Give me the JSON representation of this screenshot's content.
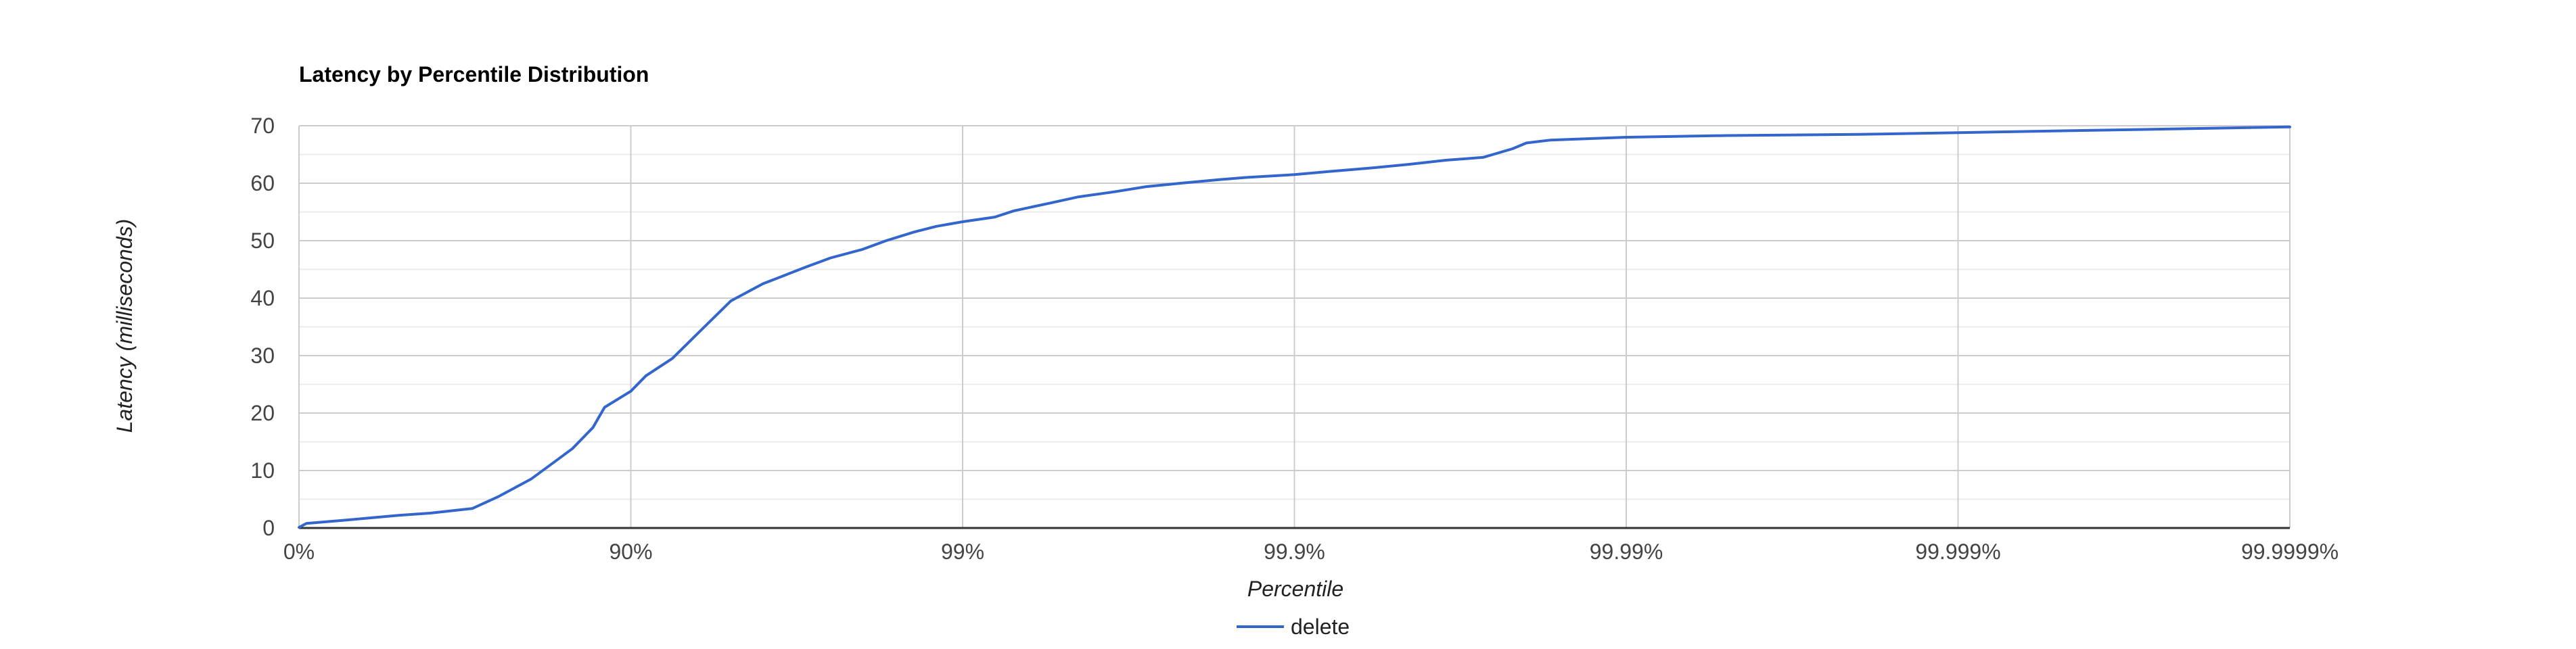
{
  "chart_data": {
    "type": "line",
    "title": "Latency by Percentile Distribution",
    "xlabel": "Percentile",
    "ylabel": "Latency (milliseconds)",
    "x_scale": "percentile-log (log10 of 1/(1 - percentile))",
    "x_tick_labels": [
      "0%",
      "90%",
      "99%",
      "99.9%",
      "99.99%",
      "99.999%",
      "99.9999%"
    ],
    "y_ticks": [
      0,
      10,
      20,
      30,
      40,
      50,
      60,
      70
    ],
    "ylim": [
      0,
      70
    ],
    "grid": true,
    "legend_position": "bottom",
    "colors": {
      "series": "#3366cc",
      "grid_major": "#cccccc",
      "grid_minor": "#ebebeb",
      "baseline": "#333333"
    },
    "series": [
      {
        "name": "delete",
        "color": "#3366cc",
        "x": [
          "0%",
          "5%",
          "25%",
          "40%",
          "50%",
          "60%",
          "70%",
          "75%",
          "80%",
          "83%",
          "85%",
          "87%",
          "88%",
          "90%",
          "91%",
          "92.5%",
          "94%",
          "95%",
          "96%",
          "97%",
          "97.5%",
          "98%",
          "98.3%",
          "98.6%",
          "98.8%",
          "99%",
          "99.2%",
          "99.3%",
          "99.45%",
          "99.55%",
          "99.65%",
          "99.72%",
          "99.78%",
          "99.83%",
          "99.86%",
          "99.9%",
          "99.92%",
          "99.94%",
          "99.955%",
          "99.965%",
          "99.973%",
          "99.978%",
          "99.98%",
          "99.983%",
          "99.99%",
          "99.995%",
          "99.998%",
          "99.999%",
          "99.9995%",
          "99.9998%",
          "99.9999%"
        ],
        "values": [
          0.1,
          0.8,
          1.3,
          1.8,
          2.2,
          2.6,
          3.4,
          5.5,
          8.5,
          11.5,
          13.8,
          17.5,
          21.0,
          23.8,
          26.5,
          29.5,
          35.0,
          39.5,
          42.5,
          45.3,
          47.0,
          48.5,
          50.0,
          51.5,
          52.5,
          53.3,
          54.1,
          55.2,
          56.5,
          57.6,
          58.5,
          59.4,
          60.0,
          60.6,
          61.0,
          61.5,
          62.0,
          62.6,
          63.3,
          64.0,
          64.5,
          66.0,
          67.0,
          67.5,
          68.0,
          68.3,
          68.5,
          68.8,
          69.1,
          69.5,
          69.8
        ]
      }
    ]
  }
}
